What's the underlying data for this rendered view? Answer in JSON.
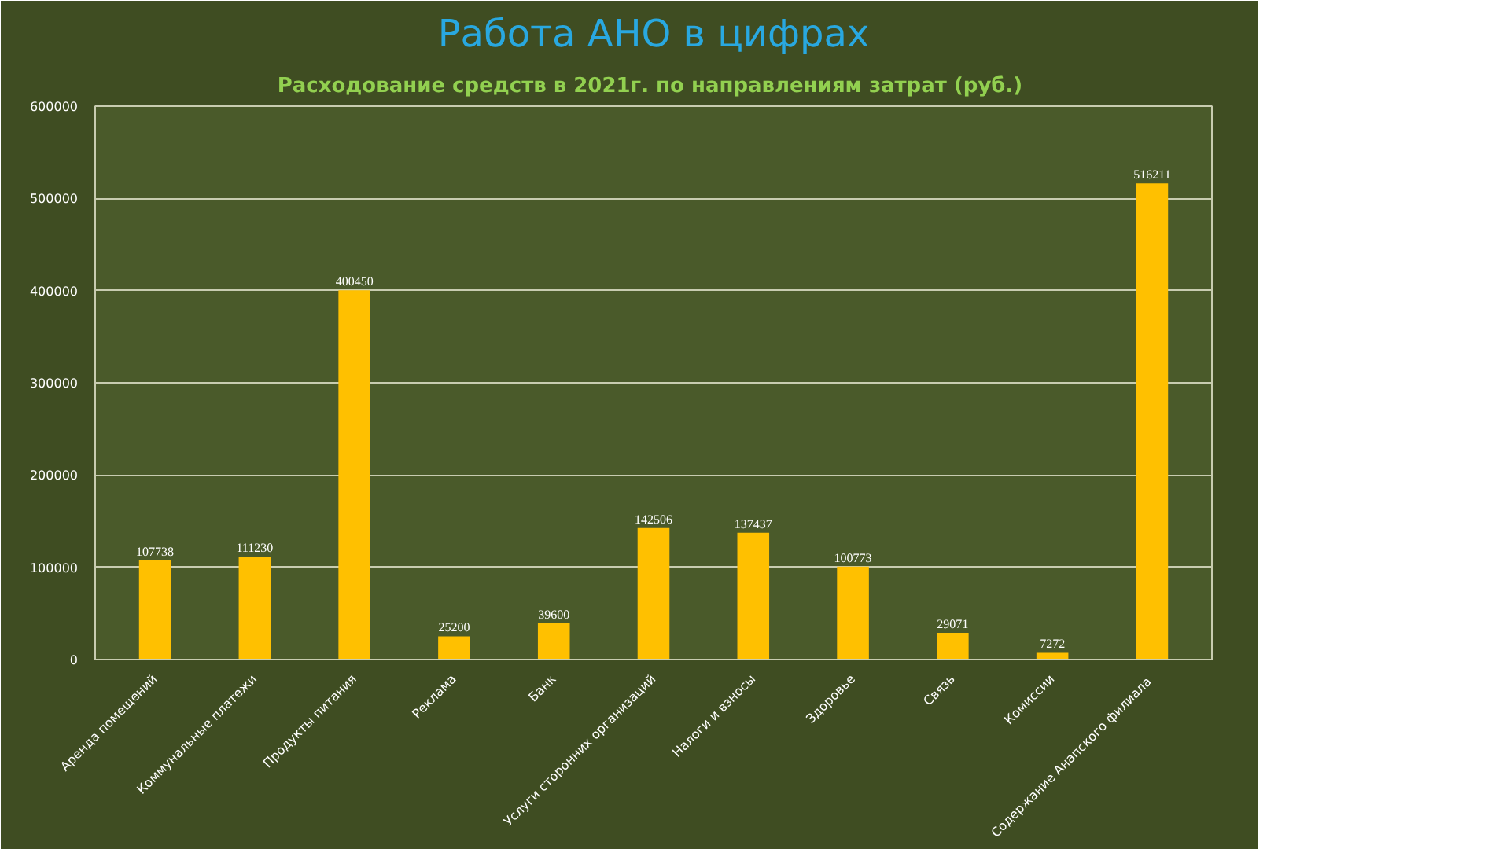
{
  "chart_data": {
    "type": "bar",
    "title": "Работа АНО в цифрах",
    "subtitle": "Расходование  средств в 2021г. по направлениям затрат (руб.)",
    "categories": [
      "Аренда помещений",
      "Коммунальные платежи",
      "Продукты питания",
      "Реклама",
      "Банк",
      "Услуги сторонних организаций",
      "Налоги и взносы",
      "Здоровье",
      "Связь",
      "Комиссии",
      "Содержание  Анапского филиала"
    ],
    "values": [
      107738,
      111230,
      400450,
      25200,
      39600,
      142506,
      137437,
      100773,
      29071,
      7272,
      516211
    ],
    "color": "#ffc000",
    "ylim": [
      0,
      600000
    ],
    "yticks": [
      0,
      100000,
      200000,
      300000,
      400000,
      500000,
      600000
    ],
    "grid": "y",
    "data_labels": true
  }
}
